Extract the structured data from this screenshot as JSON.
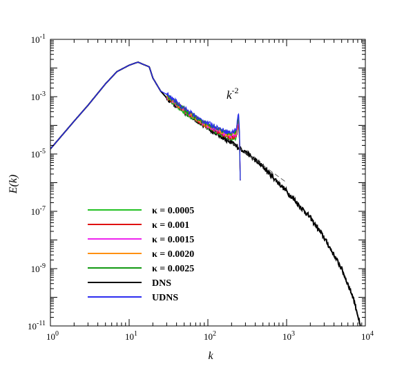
{
  "chart_data": {
    "type": "line",
    "xlabel": "k",
    "ylabel": "E(k)",
    "xscale": "log",
    "yscale": "log",
    "xlim": [
      1,
      10000
    ],
    "ylim": [
      1e-11,
      0.1
    ],
    "x_ticks": [
      {
        "base": "10",
        "exp": "0"
      },
      {
        "base": "10",
        "exp": "1"
      },
      {
        "base": "10",
        "exp": "2"
      },
      {
        "base": "10",
        "exp": "3"
      },
      {
        "base": "10",
        "exp": "4"
      }
    ],
    "y_ticks": [
      {
        "base": "10",
        "exp": "-11"
      },
      {
        "base": "10",
        "exp": "-9"
      },
      {
        "base": "10",
        "exp": "-7"
      },
      {
        "base": "10",
        "exp": "-5"
      },
      {
        "base": "10",
        "exp": "-3"
      },
      {
        "base": "10",
        "exp": "-1"
      }
    ],
    "grid": false,
    "legend_position": "bottom-left",
    "annotation": {
      "base": "k",
      "exp": "-2",
      "slope": -2,
      "x_range": [
        40,
        1000
      ],
      "y_at_start": 0.00063
    },
    "series": [
      {
        "name": "κ = 0.0005",
        "color": "#22c122",
        "x": [
          30,
          50,
          80,
          120,
          160,
          200,
          230,
          245,
          252,
          258
        ],
        "y": [
          0.0009,
          0.0003,
          0.00012,
          6.5e-05,
          4.3e-05,
          3.3e-05,
          3.6e-05,
          0.00011,
          2.5e-05,
          1.2e-06
        ]
      },
      {
        "name": "κ = 0.001",
        "color": "#e01010",
        "x": [
          30,
          50,
          80,
          120,
          160,
          200,
          230,
          245,
          252,
          258
        ],
        "y": [
          0.00095,
          0.00032,
          0.00013,
          7e-05,
          4.7e-05,
          3.7e-05,
          4.3e-05,
          0.00014,
          3e-05,
          1.2e-06
        ]
      },
      {
        "name": "κ = 0.0015",
        "color": "#ee22ee",
        "x": [
          30,
          50,
          80,
          120,
          160,
          200,
          230,
          245,
          252,
          258
        ],
        "y": [
          0.001,
          0.00034,
          0.000135,
          7.5e-05,
          5.1e-05,
          4.1e-05,
          5e-05,
          0.00016,
          3.5e-05,
          1.2e-06
        ]
      },
      {
        "name": "κ = 0.0020",
        "color": "#ff9010",
        "x": [
          30,
          50,
          80,
          120,
          160,
          200,
          230,
          245,
          252,
          258
        ],
        "y": [
          0.00105,
          0.00036,
          0.00014,
          8e-05,
          5.5e-05,
          4.5e-05,
          5.8e-05,
          0.00019,
          4e-05,
          1.2e-06
        ]
      },
      {
        "name": "κ = 0.0025",
        "color": "#119911",
        "x": [
          30,
          50,
          80,
          120,
          160,
          200,
          230,
          245,
          252,
          258
        ],
        "y": [
          0.0011,
          0.00038,
          0.000145,
          8.5e-05,
          6e-05,
          5e-05,
          6.6e-05,
          0.00022,
          4.5e-05,
          1.2e-06
        ]
      },
      {
        "name": "DNS",
        "color": "#000000",
        "x": [
          1,
          2,
          3,
          5,
          7,
          10,
          12,
          13,
          15,
          18,
          20,
          25,
          30,
          50,
          80,
          100,
          150,
          200,
          300,
          500,
          1000,
          2000,
          3000,
          5000,
          7000,
          8000,
          9000
        ],
        "y": [
          1.5e-05,
          0.00014,
          0.0005,
          0.0028,
          0.0075,
          0.0125,
          0.015,
          0.016,
          0.0135,
          0.011,
          0.0045,
          0.0016,
          0.0009,
          0.0003,
          0.00012,
          8e-05,
          4e-05,
          2.4e-05,
          1.2e-05,
          3.6e-06,
          5e-07,
          6e-08,
          1.2e-08,
          1e-09,
          1e-10,
          2.5e-11,
          5e-12
        ]
      },
      {
        "name": "UDNS",
        "color": "#2c2cf0",
        "x": [
          1,
          2,
          3,
          5,
          7,
          10,
          12,
          13,
          15,
          18,
          20,
          25,
          30,
          50,
          80,
          120,
          160,
          200,
          230,
          245,
          252,
          258
        ],
        "y": [
          1.5e-05,
          0.00014,
          0.0005,
          0.0028,
          0.0075,
          0.0125,
          0.015,
          0.016,
          0.0135,
          0.011,
          0.0045,
          0.0016,
          0.0012,
          0.0004,
          0.00016,
          9.5e-05,
          6.5e-05,
          5.5e-05,
          7.5e-05,
          0.00028,
          6e-05,
          1.2e-06
        ]
      }
    ]
  }
}
